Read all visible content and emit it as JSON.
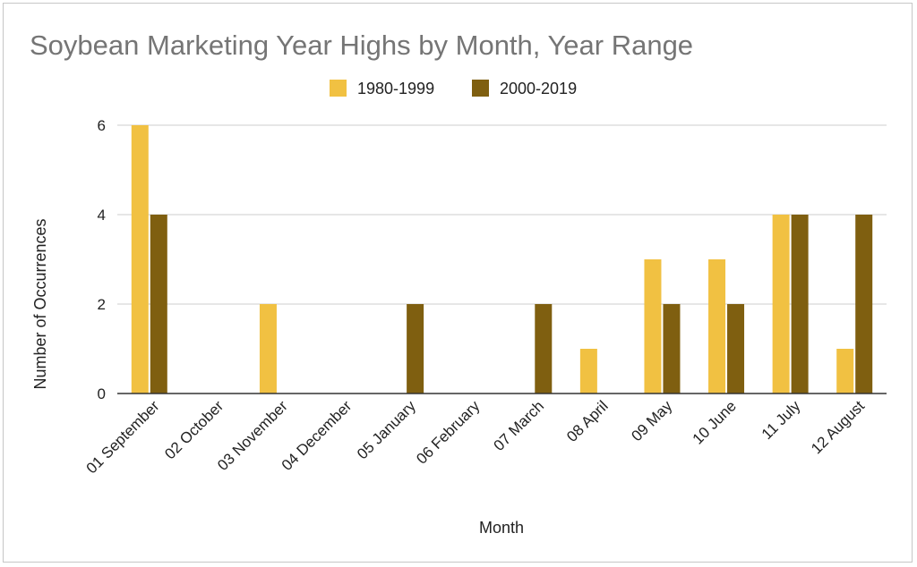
{
  "chart_data": {
    "type": "bar",
    "title": "Soybean Marketing Year Highs by Month, Year Range",
    "xlabel": "Month",
    "ylabel": "Number of Occurrences",
    "categories": [
      "01 September",
      "02 October",
      "03 November",
      "04 December",
      "05 January",
      "06 February",
      "07 March",
      "08 April",
      "09 May",
      "10 June",
      "11 July",
      "12 August"
    ],
    "series": [
      {
        "name": "1980-1999",
        "color": "#f1c142",
        "values": [
          6,
          0,
          2,
          0,
          0,
          0,
          0,
          1,
          3,
          3,
          4,
          1
        ]
      },
      {
        "name": "2000-2019",
        "color": "#7f5f10",
        "values": [
          4,
          0,
          0,
          0,
          2,
          0,
          2,
          0,
          2,
          2,
          4,
          4
        ]
      }
    ],
    "ylim": [
      0,
      6
    ],
    "yticks": [
      "0",
      "2",
      "4",
      "6"
    ],
    "grid": true,
    "legend_position": "top"
  }
}
